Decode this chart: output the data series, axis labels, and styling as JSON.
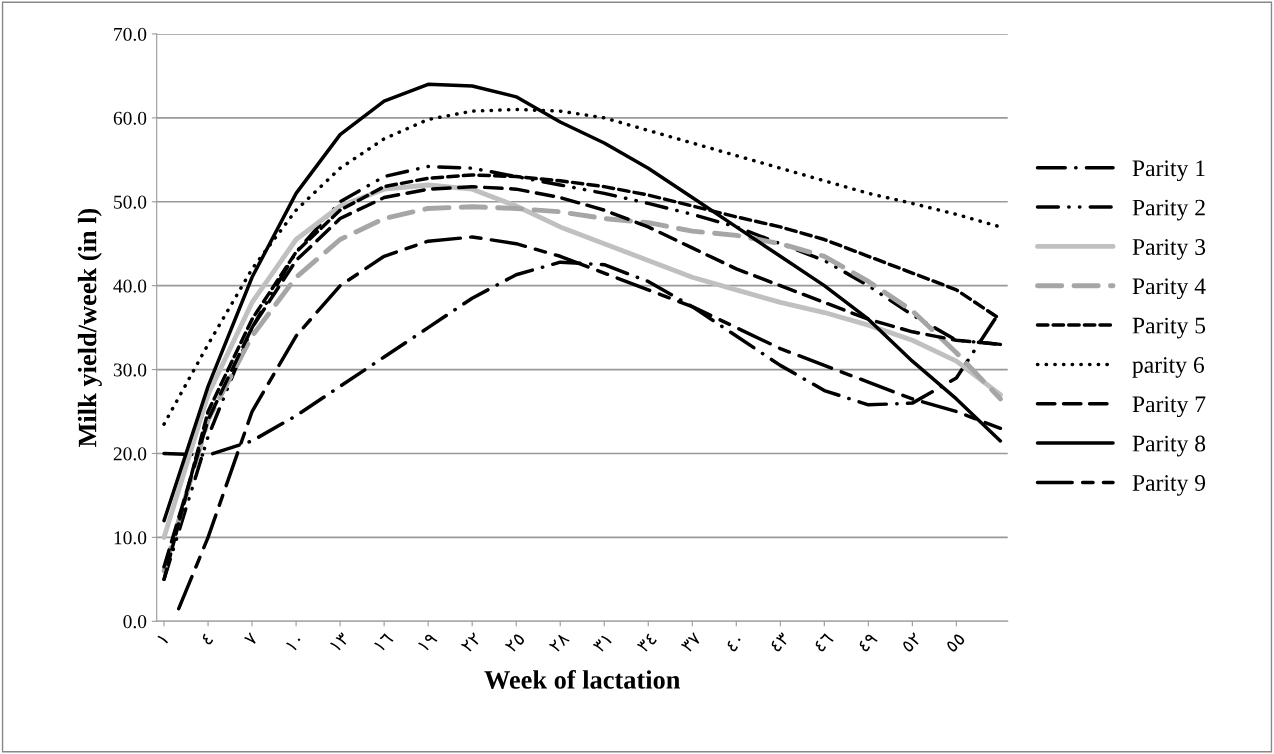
{
  "chart_data": {
    "type": "line",
    "xlabel": "Week of lactation",
    "ylabel": "Milk yield/week (in l)",
    "xlim": [
      0.5,
      58.5
    ],
    "xticks": [
      {
        "value": 1,
        "label": "١"
      },
      {
        "value": 4,
        "label": "٤"
      },
      {
        "value": 7,
        "label": "٧"
      },
      {
        "value": 10,
        "label": "١٠"
      },
      {
        "value": 13,
        "label": "١٣"
      },
      {
        "value": 16,
        "label": "١٦"
      },
      {
        "value": 19,
        "label": "١٩"
      },
      {
        "value": 22,
        "label": "٢٢"
      },
      {
        "value": 25,
        "label": "٢٥"
      },
      {
        "value": 28,
        "label": "٢٨"
      },
      {
        "value": 31,
        "label": "٣١"
      },
      {
        "value": 34,
        "label": "٣٤"
      },
      {
        "value": 37,
        "label": "٣٧"
      },
      {
        "value": 40,
        "label": "٤٠"
      },
      {
        "value": 43,
        "label": "٤٣"
      },
      {
        "value": 46,
        "label": "٤٦"
      },
      {
        "value": 49,
        "label": "٤٩"
      },
      {
        "value": 52,
        "label": "٥٢"
      },
      {
        "value": 55,
        "label": "٥٥"
      }
    ],
    "ylim": [
      0,
      70
    ],
    "yticks": [
      {
        "value": 0,
        "label": "0.0"
      },
      {
        "value": 10,
        "label": "10.0"
      },
      {
        "value": 20,
        "label": "20.0"
      },
      {
        "value": 30,
        "label": "30.0"
      },
      {
        "value": 40,
        "label": "40.0"
      },
      {
        "value": 50,
        "label": "50.0"
      },
      {
        "value": 60,
        "label": "60.0"
      },
      {
        "value": 70,
        "label": "70.0"
      }
    ],
    "grid": "y",
    "legend": "right",
    "x": [
      1,
      4,
      7,
      10,
      13,
      16,
      19,
      22,
      25,
      28,
      31,
      34,
      37,
      40,
      43,
      46,
      49,
      52,
      55,
      58
    ],
    "series": [
      {
        "name": "Parity 1",
        "color": "#000000",
        "line_style": "dashdot",
        "values": [
          20,
          19.8,
          21.5,
          24.5,
          28,
          31.5,
          35,
          38.5,
          41.3,
          42.8,
          42.5,
          40.5,
          37.5,
          34,
          30.5,
          27.5,
          25.8,
          26,
          29,
          37
        ]
      },
      {
        "name": "Parity 2",
        "color": "#000000",
        "line_style": "dashdotdot",
        "values": [
          5,
          22,
          35,
          44,
          50,
          53,
          54.2,
          54,
          53,
          52,
          51,
          49.8,
          48.5,
          47,
          45,
          43,
          40,
          36.5,
          33.5,
          33
        ]
      },
      {
        "name": "Parity 3",
        "color": "#c0c0c0",
        "line_style": "solid",
        "values": [
          10,
          27,
          38,
          45.5,
          49.5,
          51.5,
          52,
          51.5,
          49.5,
          47,
          45,
          43,
          41,
          39.5,
          38,
          36.8,
          35.3,
          33.5,
          31,
          27
        ]
      },
      {
        "name": "Parity 4",
        "color": "#a6a6a6",
        "line_style": "dashed",
        "values": [
          6,
          24,
          34,
          41,
          45.5,
          48,
          49.2,
          49.4,
          49.2,
          48.8,
          48,
          47.5,
          46.5,
          46,
          45,
          43.5,
          40.5,
          37,
          32,
          26.5
        ]
      },
      {
        "name": "Parity 5",
        "color": "#000000",
        "line_style": "shortdash",
        "values": [
          5,
          25,
          36,
          44,
          49,
          51.8,
          52.8,
          53.2,
          53,
          52.5,
          51.8,
          50.8,
          49.5,
          48.2,
          47,
          45.5,
          43.5,
          41.5,
          39.5,
          36
        ]
      },
      {
        "name": "parity 6",
        "color": "#000000",
        "line_style": "dotted",
        "values": [
          23.5,
          33,
          42,
          49,
          54,
          57.5,
          59.8,
          60.8,
          61,
          60.8,
          60,
          58.5,
          57,
          55.5,
          54,
          52.5,
          51,
          49.8,
          48.5,
          47
        ]
      },
      {
        "name": "Parity 7",
        "color": "#000000",
        "line_style": "dashed",
        "values": [
          6.5,
          24,
          35,
          43,
          48,
          50.5,
          51.5,
          51.8,
          51.5,
          50.5,
          49,
          47,
          44.5,
          42,
          40,
          38,
          36,
          34.5,
          33.5,
          33
        ]
      },
      {
        "name": "Parity 8",
        "color": "#000000",
        "line_style": "solid",
        "values": [
          12,
          28,
          41,
          51,
          58,
          62,
          64,
          63.8,
          62.5,
          59.5,
          57,
          54,
          50.5,
          47,
          43.5,
          40,
          36,
          31,
          26.5,
          21.5
        ]
      },
      {
        "name": "Parity 9",
        "color": "#000000",
        "line_style": "longdash",
        "x": [
          2,
          4,
          7,
          10,
          13,
          16,
          19,
          22,
          25,
          28,
          31,
          34,
          37,
          40,
          43,
          46,
          49,
          52,
          55,
          58
        ],
        "values": [
          1.5,
          10,
          25,
          34,
          40,
          43.5,
          45.3,
          45.8,
          45,
          43.5,
          41.5,
          39.5,
          37.5,
          35,
          32.5,
          30.5,
          28.5,
          26.5,
          25,
          23
        ]
      }
    ]
  }
}
